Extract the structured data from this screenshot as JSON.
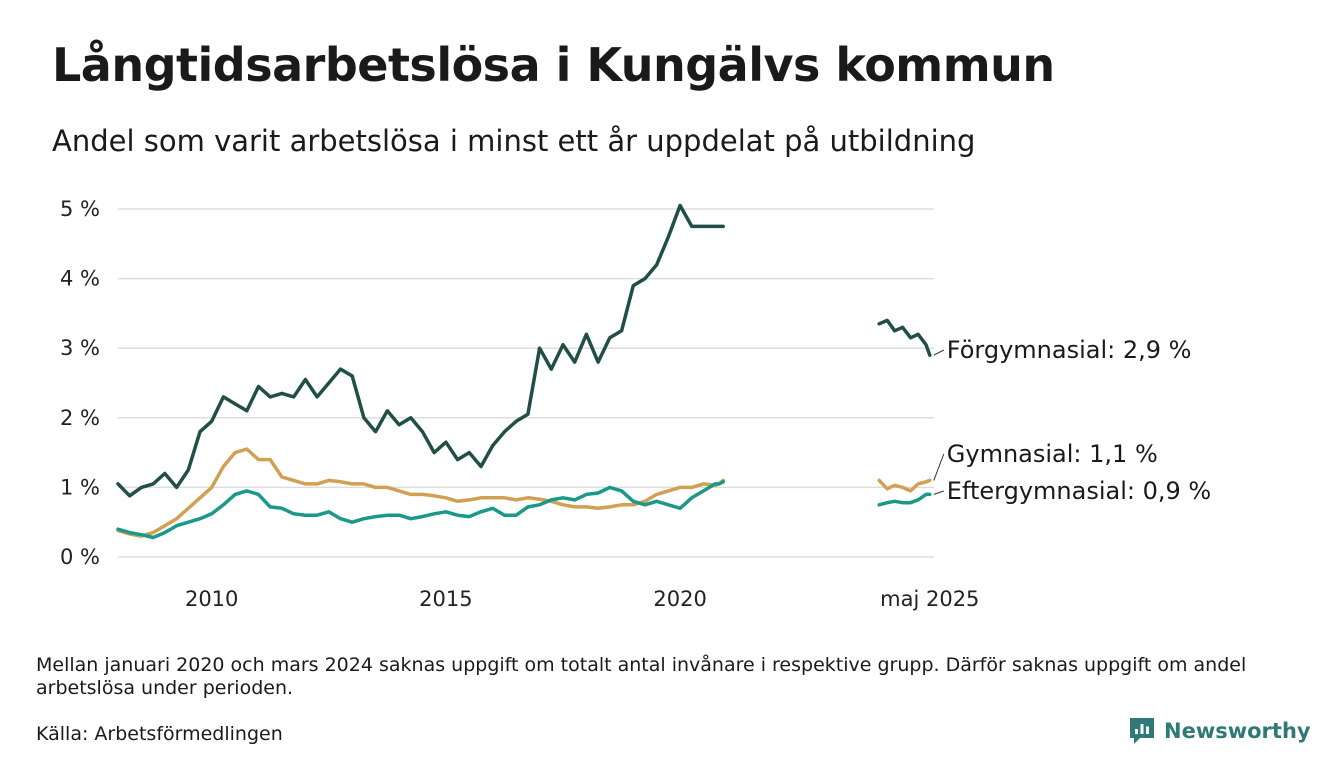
{
  "header": {
    "title": "Långtidsarbetslösa i Kungälvs kommun",
    "subtitle": "Andel som varit arbetslösa i minst ett år uppdelat på utbildning"
  },
  "footer": {
    "note": "Mellan januari 2020 och mars 2024 saknas uppgift om totalt antal invånare i respektive grupp. Därför saknas uppgift om andel arbetslösa under perioden.",
    "source": "Källa: Arbetsförmedlingen",
    "brand": "Newsworthy",
    "brand_color": "#2f7a76"
  },
  "chart_data": {
    "type": "line",
    "title": "Långtidsarbetslösa i Kungälvs kommun",
    "subtitle": "Andel som varit arbetslösa i minst ett år uppdelat på utbildning",
    "xlabel": "",
    "ylabel": "",
    "ylim": [
      0,
      5
    ],
    "yticks": [
      0,
      1,
      2,
      3,
      4,
      5
    ],
    "ytick_labels": [
      "0 %",
      "1 %",
      "2 %",
      "3 %",
      "4 %",
      "5 %"
    ],
    "xticks": [
      2010,
      2015,
      2020,
      2025.33
    ],
    "xtick_labels": [
      "2010",
      "2015",
      "2020",
      "maj 2025"
    ],
    "xlim": [
      2008.0,
      2025.42
    ],
    "grid": "horizontal",
    "legend": "direct labels at line ends, right",
    "series": [
      {
        "name": "Förgymnasial",
        "end_label": "Förgymnasial: 2,9 %",
        "color": "#1f4f47",
        "segments": [
          {
            "x": [
              2008.0,
              2008.25,
              2008.5,
              2008.75,
              2009.0,
              2009.25,
              2009.5,
              2009.75,
              2010.0,
              2010.25,
              2010.5,
              2010.75,
              2011.0,
              2011.25,
              2011.5,
              2011.75,
              2012.0,
              2012.25,
              2012.5,
              2012.75,
              2013.0,
              2013.25,
              2013.5,
              2013.75,
              2014.0,
              2014.25,
              2014.5,
              2014.75,
              2015.0,
              2015.25,
              2015.5,
              2015.75,
              2016.0,
              2016.25,
              2016.5,
              2016.75,
              2017.0,
              2017.25,
              2017.5,
              2017.75,
              2018.0,
              2018.25,
              2018.5,
              2018.75,
              2019.0,
              2019.25,
              2019.5,
              2019.75,
              2020.0,
              2020.25,
              2020.5,
              2020.75,
              2020.83,
              2020.92
            ],
            "y": [
              1.05,
              0.88,
              1.0,
              1.05,
              1.2,
              1.0,
              1.25,
              1.8,
              1.95,
              2.3,
              2.2,
              2.1,
              2.45,
              2.3,
              2.35,
              2.3,
              2.55,
              2.3,
              2.5,
              2.7,
              2.6,
              2.0,
              1.8,
              2.1,
              1.9,
              2.0,
              1.8,
              1.5,
              1.65,
              1.4,
              1.5,
              1.3,
              1.6,
              1.8,
              1.95,
              2.05,
              3.0,
              2.7,
              3.05,
              2.8,
              3.2,
              2.8,
              3.15,
              3.25,
              3.9,
              4.0,
              4.2,
              4.6,
              5.05,
              4.75,
              4.75,
              4.75,
              4.75,
              4.75
            ]
          },
          {
            "x": [
              2024.25,
              2024.42,
              2024.58,
              2024.75,
              2024.92,
              2025.08,
              2025.25,
              2025.33
            ],
            "y": [
              3.35,
              3.4,
              3.25,
              3.3,
              3.15,
              3.2,
              3.05,
              2.9
            ]
          }
        ]
      },
      {
        "name": "Gymnasial",
        "end_label": "Gymnasial: 1,1 %",
        "color": "#d1a053",
        "segments": [
          {
            "x": [
              2008.0,
              2008.25,
              2008.5,
              2008.75,
              2009.0,
              2009.25,
              2009.5,
              2009.75,
              2010.0,
              2010.25,
              2010.5,
              2010.75,
              2011.0,
              2011.25,
              2011.5,
              2011.75,
              2012.0,
              2012.25,
              2012.5,
              2012.75,
              2013.0,
              2013.25,
              2013.5,
              2013.75,
              2014.0,
              2014.25,
              2014.5,
              2014.75,
              2015.0,
              2015.25,
              2015.5,
              2015.75,
              2016.0,
              2016.25,
              2016.5,
              2016.75,
              2017.0,
              2017.25,
              2017.5,
              2017.75,
              2018.0,
              2018.25,
              2018.5,
              2018.75,
              2019.0,
              2019.25,
              2019.5,
              2019.75,
              2020.0,
              2020.25,
              2020.5,
              2020.75,
              2020.83,
              2020.92
            ],
            "y": [
              0.38,
              0.33,
              0.3,
              0.35,
              0.45,
              0.55,
              0.7,
              0.85,
              1.0,
              1.3,
              1.5,
              1.55,
              1.4,
              1.4,
              1.15,
              1.1,
              1.05,
              1.05,
              1.1,
              1.08,
              1.05,
              1.05,
              1.0,
              1.0,
              0.95,
              0.9,
              0.9,
              0.88,
              0.85,
              0.8,
              0.82,
              0.85,
              0.85,
              0.85,
              0.82,
              0.85,
              0.83,
              0.8,
              0.75,
              0.72,
              0.72,
              0.7,
              0.72,
              0.75,
              0.75,
              0.8,
              0.9,
              0.95,
              1.0,
              1.0,
              1.05,
              1.03,
              1.05,
              1.1
            ]
          },
          {
            "x": [
              2024.25,
              2024.42,
              2024.58,
              2024.75,
              2024.92,
              2025.08,
              2025.25,
              2025.33
            ],
            "y": [
              1.1,
              0.98,
              1.03,
              1.0,
              0.95,
              1.05,
              1.08,
              1.1
            ]
          }
        ]
      },
      {
        "name": "Eftergymnasial",
        "end_label": "Eftergymnasial: 0,9 %",
        "color": "#1a9988",
        "segments": [
          {
            "x": [
              2008.0,
              2008.25,
              2008.5,
              2008.75,
              2009.0,
              2009.25,
              2009.5,
              2009.75,
              2010.0,
              2010.25,
              2010.5,
              2010.75,
              2011.0,
              2011.25,
              2011.5,
              2011.75,
              2012.0,
              2012.25,
              2012.5,
              2012.75,
              2013.0,
              2013.25,
              2013.5,
              2013.75,
              2014.0,
              2014.25,
              2014.5,
              2014.75,
              2015.0,
              2015.25,
              2015.5,
              2015.75,
              2016.0,
              2016.25,
              2016.5,
              2016.75,
              2017.0,
              2017.25,
              2017.5,
              2017.75,
              2018.0,
              2018.25,
              2018.5,
              2018.75,
              2019.0,
              2019.25,
              2019.5,
              2019.75,
              2020.0,
              2020.25,
              2020.5,
              2020.75,
              2020.83,
              2020.92
            ],
            "y": [
              0.4,
              0.35,
              0.32,
              0.28,
              0.35,
              0.45,
              0.5,
              0.55,
              0.62,
              0.75,
              0.9,
              0.95,
              0.9,
              0.72,
              0.7,
              0.62,
              0.6,
              0.6,
              0.65,
              0.55,
              0.5,
              0.55,
              0.58,
              0.6,
              0.6,
              0.55,
              0.58,
              0.62,
              0.65,
              0.6,
              0.58,
              0.65,
              0.7,
              0.6,
              0.6,
              0.72,
              0.75,
              0.82,
              0.85,
              0.82,
              0.9,
              0.92,
              1.0,
              0.95,
              0.8,
              0.75,
              0.8,
              0.75,
              0.7,
              0.85,
              0.95,
              1.05,
              1.05,
              1.08
            ]
          },
          {
            "x": [
              2024.25,
              2024.42,
              2024.58,
              2024.75,
              2024.92,
              2025.08,
              2025.25,
              2025.33
            ],
            "y": [
              0.75,
              0.78,
              0.8,
              0.78,
              0.78,
              0.82,
              0.9,
              0.9
            ]
          }
        ]
      }
    ]
  }
}
